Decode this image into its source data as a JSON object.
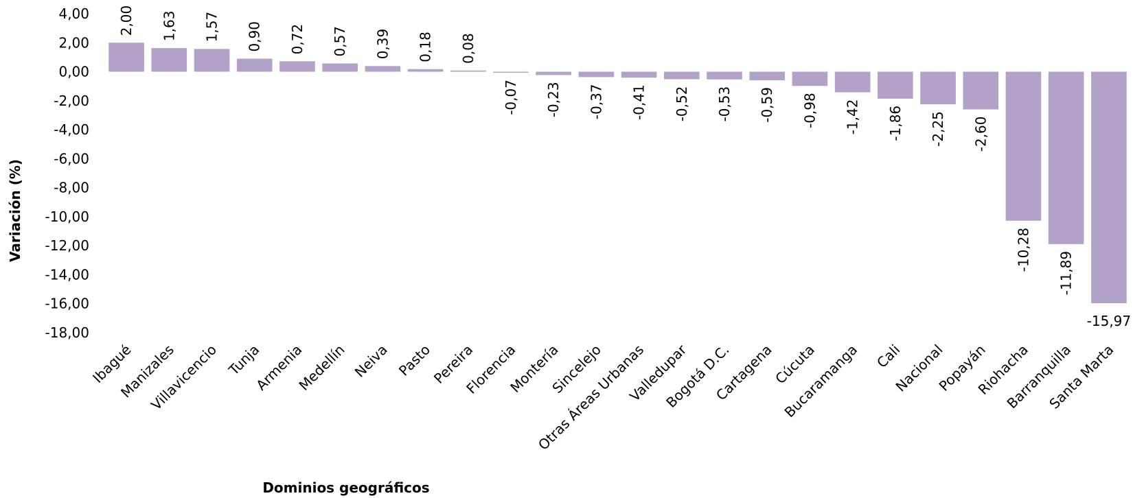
{
  "chart_data": {
    "type": "bar",
    "title": "",
    "xlabel": "Dominios geográficos",
    "ylabel": "Variación (%)",
    "ylim": [
      -18,
      4
    ],
    "yticks": [
      "4,00",
      "2,00",
      "0,00",
      "-2,00",
      "-4,00",
      "-6,00",
      "-8,00",
      "-10,00",
      "-12,00",
      "-14,00",
      "-16,00",
      "-18,00"
    ],
    "ytick_values": [
      4,
      2,
      0,
      -2,
      -4,
      -6,
      -8,
      -10,
      -12,
      -14,
      -16,
      -18
    ],
    "categories": [
      "Ibagué",
      "Manizales",
      "Villavicencio",
      "Tunja",
      "Armenia",
      "Medellín",
      "Neiva",
      "Pasto",
      "Pereira",
      "Florencia",
      "Montería",
      "Sincelejo",
      "Otras Áreas Urbanas",
      "Valledupar",
      "Bogotá D.C.",
      "Cartagena",
      "Cúcuta",
      "Bucaramanga",
      "Cali",
      "Nacional",
      "Popayán",
      "Riohacha",
      "Barranquilla",
      "Santa Marta"
    ],
    "values": [
      2.0,
      1.63,
      1.57,
      0.9,
      0.72,
      0.57,
      0.39,
      0.18,
      0.08,
      -0.07,
      -0.23,
      -0.37,
      -0.41,
      -0.52,
      -0.53,
      -0.59,
      -0.98,
      -1.42,
      -1.86,
      -2.25,
      -2.6,
      -10.28,
      -11.89,
      -15.97
    ],
    "data_labels": [
      "2,00",
      "1,63",
      "1,57",
      "0,90",
      "0,72",
      "0,57",
      "0,39",
      "0,18",
      "0,08",
      "-0,07",
      "-0,23",
      "-0,37",
      "-0,41",
      "-0,52",
      "-0,53",
      "-0,59",
      "-0,98",
      "-1,42",
      "-1,86",
      "-2,25",
      "-2,60",
      "-10,28",
      "-11,89",
      "-15,97"
    ],
    "bar_color": "#b3a2c7",
    "grid": false,
    "legend": "none"
  }
}
